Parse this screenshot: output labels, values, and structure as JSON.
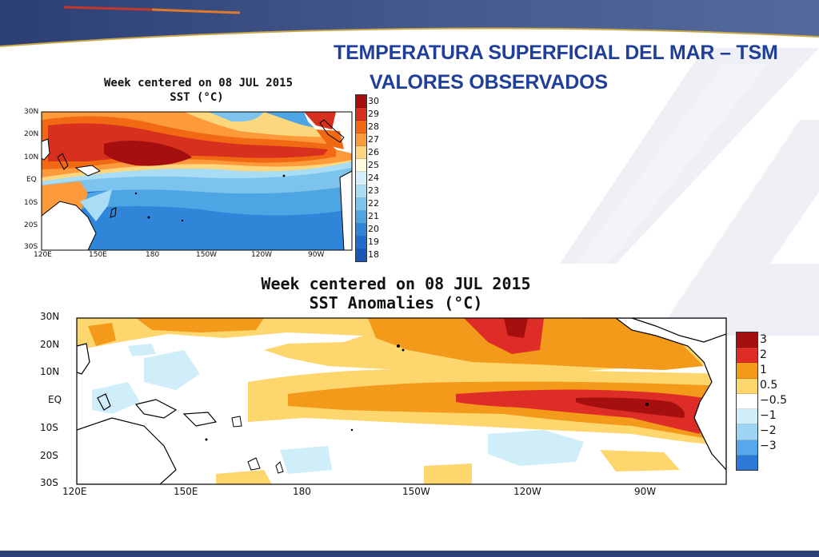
{
  "slide": {
    "title_line1": "TEMPERATURA SUPERFICIAL DEL MAR – TSM",
    "title_line2": "VALORES OBSERVADOS",
    "title_color": "#1f3f99",
    "band_color": "#2a3f77"
  },
  "sst_map": {
    "title": "Week centered on 08 JUL 2015",
    "subtitle": "SST (°C)",
    "lat_ticks": [
      "30N",
      "20N",
      "10N",
      "EQ",
      "10S",
      "20S",
      "30S"
    ],
    "lon_ticks": [
      "120E",
      "150E",
      "180",
      "150W",
      "120W",
      "90W"
    ],
    "colorbar": [
      {
        "label": "30",
        "color": "#a50f0f"
      },
      {
        "label": "29",
        "color": "#d7301f"
      },
      {
        "label": "28",
        "color": "#f16913"
      },
      {
        "label": "27",
        "color": "#fd9a3c"
      },
      {
        "label": "26",
        "color": "#fdd77e"
      },
      {
        "label": "25",
        "color": "#fffbe0"
      },
      {
        "label": "24",
        "color": "#d6f0fb"
      },
      {
        "label": "23",
        "color": "#a9dcf5"
      },
      {
        "label": "22",
        "color": "#7cc3ee"
      },
      {
        "label": "21",
        "color": "#4ea5e3"
      },
      {
        "label": "20",
        "color": "#2f86d8"
      },
      {
        "label": "19",
        "color": "#1f6ccd"
      },
      {
        "label": "18",
        "color": "#1a55b8"
      }
    ]
  },
  "anomaly_map": {
    "title": "Week centered on 08 JUL 2015",
    "subtitle": "SST Anomalies (°C)",
    "lat_ticks": [
      "30N",
      "20N",
      "10N",
      "EQ",
      "10S",
      "20S",
      "30S"
    ],
    "lon_ticks": [
      "120E",
      "150E",
      "180",
      "150W",
      "120W",
      "90W"
    ],
    "colorbar": [
      {
        "label": "3",
        "color": "#a50f0f"
      },
      {
        "label": "2",
        "color": "#de2d26"
      },
      {
        "label": "1",
        "color": "#f39a1a"
      },
      {
        "label": "0.5",
        "color": "#fdd66e"
      },
      {
        "label": "−0.5",
        "color": "#ffffff"
      },
      {
        "label": "−1",
        "color": "#cfeefa"
      },
      {
        "label": "−2",
        "color": "#9fd4f3"
      },
      {
        "label": "−3",
        "color": "#56a8ea"
      },
      {
        "label": "",
        "color": "#2c79d8"
      }
    ]
  }
}
